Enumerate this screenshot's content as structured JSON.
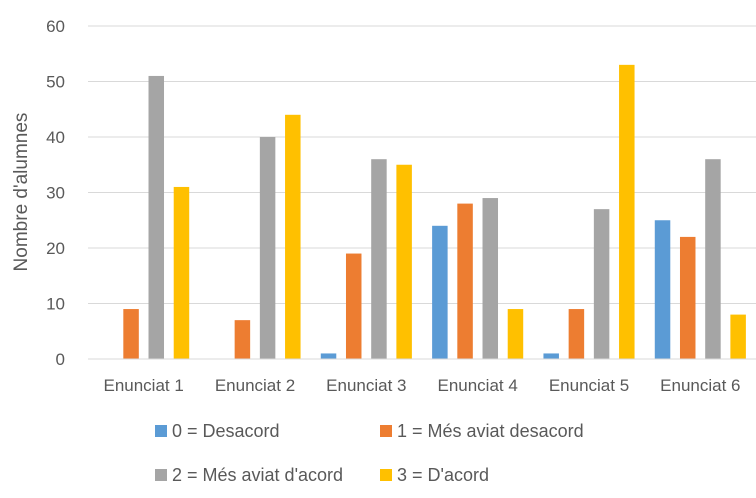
{
  "chart_data": {
    "type": "bar",
    "categories": [
      "Enunciat 1",
      "Enunciat 2",
      "Enunciat 3",
      "Enunciat 4",
      "Enunciat 5",
      "Enunciat 6"
    ],
    "series": [
      {
        "name": "0 = Desacord",
        "color": "#5B9BD5",
        "values": [
          0,
          0,
          1,
          24,
          1,
          25
        ]
      },
      {
        "name": "1 = Més aviat desacord",
        "color": "#ED7D31",
        "values": [
          9,
          7,
          19,
          28,
          9,
          22
        ]
      },
      {
        "name": "2 = Més aviat d'acord",
        "color": "#A5A5A5",
        "values": [
          51,
          40,
          36,
          29,
          27,
          36
        ]
      },
      {
        "name": "3 = D'acord",
        "color": "#FFC000",
        "values": [
          31,
          44,
          35,
          9,
          53,
          8
        ]
      }
    ],
    "ylabel": "Nombre d'alumnes",
    "xlabel": "",
    "ylim": [
      0,
      60
    ],
    "yticks": [
      0,
      10,
      20,
      30,
      40,
      50,
      60
    ],
    "grid": true,
    "legend_position": "bottom"
  }
}
